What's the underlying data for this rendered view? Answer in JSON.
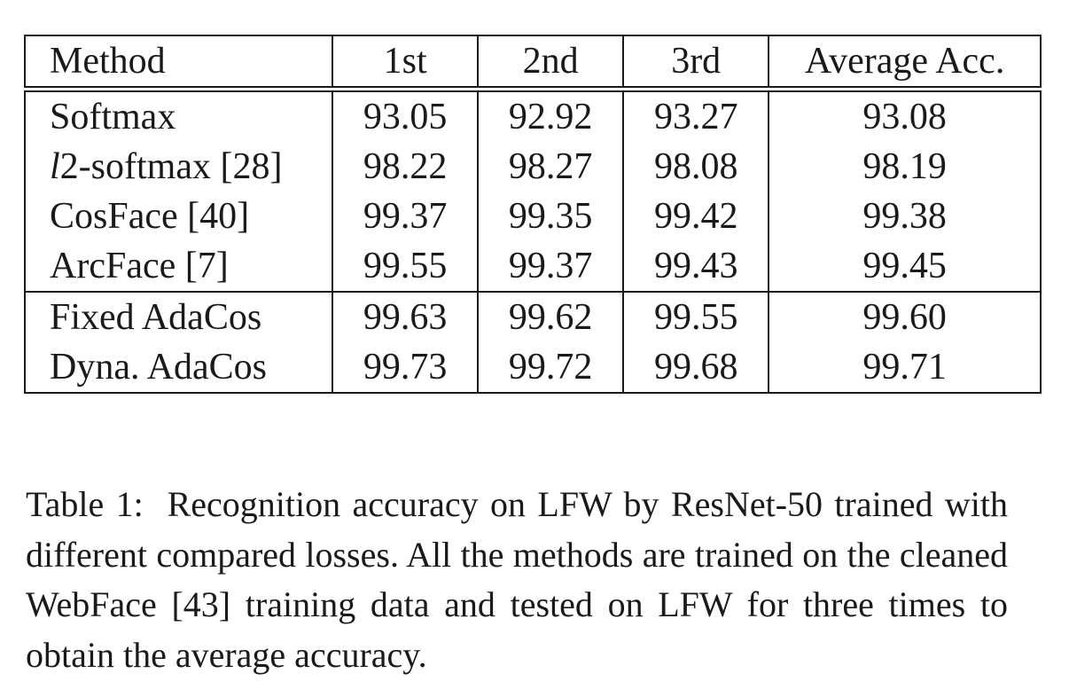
{
  "table": {
    "headers": [
      "Method",
      "1st",
      "2nd",
      "3rd",
      "Average Acc."
    ],
    "groups": [
      [
        {
          "method": "Softmax",
          "values": [
            "93.05",
            "92.92",
            "93.27",
            "93.08"
          ]
        },
        {
          "method_prefix": "l",
          "method": "2-softmax [28]",
          "values": [
            "98.22",
            "98.27",
            "98.08",
            "98.19"
          ]
        },
        {
          "method": "CosFace [40]",
          "values": [
            "99.37",
            "99.35",
            "99.42",
            "99.38"
          ]
        },
        {
          "method": "ArcFace [7]",
          "values": [
            "99.55",
            "99.37",
            "99.43",
            "99.45"
          ]
        }
      ],
      [
        {
          "method": "Fixed AdaCos",
          "values": [
            "99.63",
            "99.62",
            "99.55",
            "99.60"
          ]
        },
        {
          "method": "Dyna. AdaCos",
          "values": [
            "99.73",
            "99.72",
            "99.68",
            "99.71"
          ]
        }
      ]
    ]
  },
  "caption": {
    "label": "Table 1:",
    "text": "Recognition accuracy on LFW by ResNet-50 trained with different compared losses. All the methods are trained on the cleaned WebFace [43] training data and tested on LFW for three times to obtain the average accuracy."
  }
}
